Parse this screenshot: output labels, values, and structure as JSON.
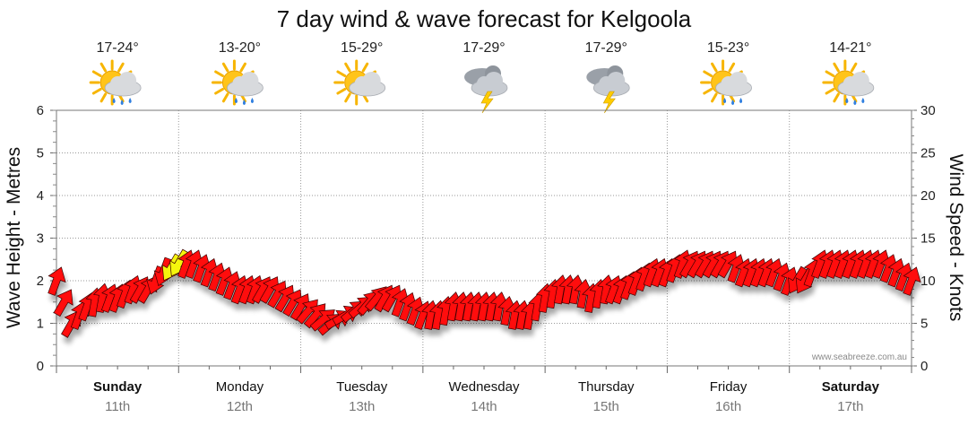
{
  "chart_data": {
    "type": "line",
    "title": "7 day wind & wave forecast for Kelgoola",
    "ylabel": "Wave Height - Metres",
    "y2label": "Wind Speed - Knots",
    "ylim": [
      0,
      6
    ],
    "y2lim": [
      0,
      30
    ],
    "yticks": [
      "0",
      "1",
      "2",
      "3",
      "4",
      "5",
      "6"
    ],
    "y2ticks": [
      "0",
      "5",
      "10",
      "15",
      "20",
      "25",
      "30"
    ],
    "grid": true,
    "days": [
      {
        "name": "Sunday",
        "date": "11th",
        "bold": true,
        "temp": "17-24°",
        "icon": "sun-cloud-rain-icon"
      },
      {
        "name": "Monday",
        "date": "12th",
        "bold": false,
        "temp": "13-20°",
        "icon": "sun-cloud-rain-icon"
      },
      {
        "name": "Tuesday",
        "date": "13th",
        "bold": false,
        "temp": "15-29°",
        "icon": "sun-cloud-icon"
      },
      {
        "name": "Wednesday",
        "date": "14th",
        "bold": false,
        "temp": "17-29°",
        "icon": "storm-cloud-icon"
      },
      {
        "name": "Thursday",
        "date": "15th",
        "bold": false,
        "temp": "17-29°",
        "icon": "storm-cloud-icon"
      },
      {
        "name": "Friday",
        "date": "16th",
        "bold": false,
        "temp": "15-23°",
        "icon": "sun-cloud-rain-icon"
      },
      {
        "name": "Saturday",
        "date": "17th",
        "bold": true,
        "temp": "14-21°",
        "icon": "sun-cloud-rain-icon"
      }
    ],
    "series": [
      {
        "name": "Wind Speed - Knots",
        "unit": "knots",
        "hours": [
          0,
          3,
          6,
          9,
          12,
          15,
          18,
          21,
          24,
          27,
          30,
          33,
          36,
          39,
          42,
          45,
          48,
          51,
          54,
          57,
          60,
          63,
          66,
          69,
          72,
          75,
          78,
          81,
          84,
          87,
          90,
          93,
          96,
          99,
          102,
          105,
          108,
          111,
          114,
          117,
          120,
          123,
          126,
          129,
          132,
          135,
          138,
          141,
          144,
          147,
          150,
          153,
          156,
          159,
          162,
          165,
          168
        ],
        "values": [
          10,
          5,
          7,
          8,
          8,
          9,
          9,
          11,
          12,
          12,
          11,
          10,
          9,
          9,
          9,
          8,
          7,
          6,
          5,
          6,
          7,
          8,
          8,
          7,
          6,
          6,
          7,
          7,
          7,
          7,
          6,
          6,
          8,
          9,
          9,
          8,
          9,
          9,
          10,
          11,
          11,
          12,
          12,
          12,
          12,
          11,
          11,
          11,
          10,
          10,
          12,
          12,
          12,
          12,
          12,
          11,
          10
        ],
        "directions_deg": [
          200,
          210,
          200,
          190,
          200,
          200,
          210,
          20,
          30,
          200,
          200,
          200,
          200,
          200,
          210,
          210,
          210,
          220,
          230,
          240,
          230,
          220,
          210,
          200,
          200,
          190,
          190,
          190,
          190,
          190,
          190,
          190,
          190,
          190,
          190,
          190,
          190,
          200,
          200,
          200,
          200,
          200,
          210,
          210,
          210,
          200,
          200,
          200,
          200,
          30,
          200,
          200,
          200,
          200,
          200,
          200,
          200
        ]
      }
    ],
    "arrow_colors": {
      "light": "#f5f50a",
      "strong": "#ff1010",
      "outline": "#3a0000"
    },
    "credit": "www.seabreeze.com.au"
  }
}
